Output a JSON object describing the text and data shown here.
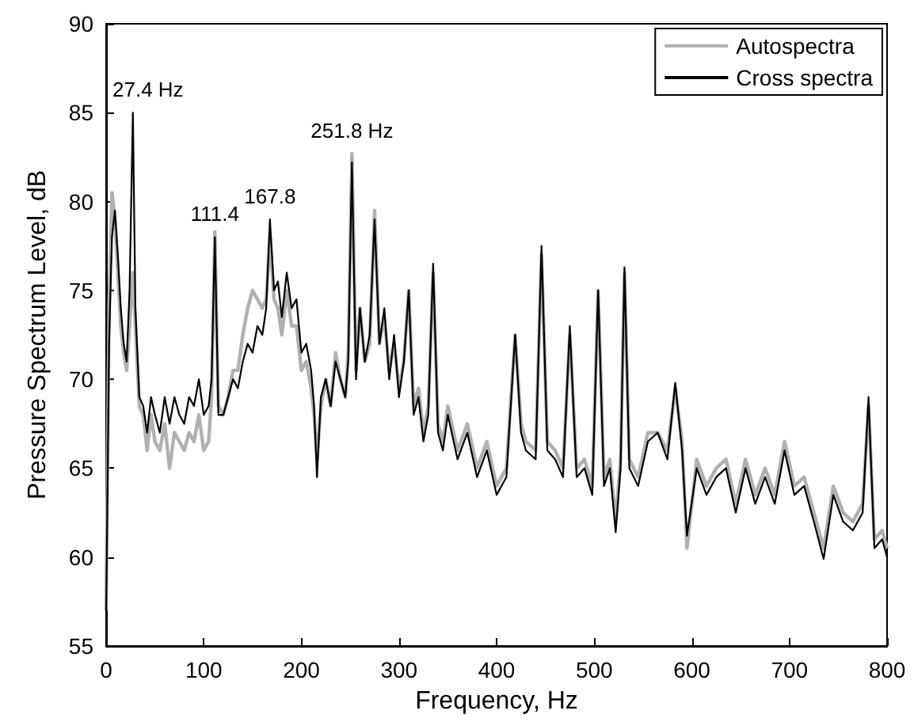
{
  "chart_data": {
    "type": "line",
    "xlabel": "Frequency, Hz",
    "ylabel": "Pressure Spectrum Level, dB",
    "xlim": [
      0,
      800
    ],
    "xticks": [
      0,
      100,
      200,
      300,
      400,
      500,
      600,
      700,
      800
    ],
    "ylim": [
      55,
      90
    ],
    "yticks": [
      55,
      60,
      65,
      70,
      75,
      80,
      85,
      90
    ],
    "grid": false,
    "legend": "top right",
    "marker": "none",
    "line_style": "solid",
    "annotations": [
      {
        "text": "27.4 Hz",
        "x": 27.4,
        "y": 85
      },
      {
        "text": "111.4",
        "x": 111.4,
        "y": 78
      },
      {
        "text": "167.8",
        "x": 167.8,
        "y": 79
      },
      {
        "text": "251.8 Hz",
        "x": 251.8,
        "y": 82.7
      }
    ],
    "x": [
      0,
      3,
      6,
      9,
      12,
      15,
      18,
      21,
      24,
      27.4,
      30,
      34,
      38,
      42,
      46,
      50,
      55,
      60,
      65,
      70,
      75,
      80,
      85,
      90,
      95,
      100,
      105,
      108,
      111.4,
      115,
      120,
      125,
      130,
      135,
      140,
      145,
      150,
      155,
      160,
      164,
      167.8,
      172,
      176,
      180,
      185,
      190,
      195,
      200,
      205,
      210,
      213,
      216,
      220,
      225,
      230,
      235,
      240,
      245,
      248,
      251.8,
      256,
      260,
      265,
      270,
      275,
      280,
      285,
      290,
      295,
      300,
      305,
      310,
      315,
      320,
      325,
      330,
      335,
      340,
      345,
      350,
      360,
      370,
      380,
      390,
      400,
      410,
      419,
      425,
      430,
      440,
      446,
      452,
      460,
      468,
      475,
      482,
      490,
      498,
      504,
      510,
      516,
      522,
      527,
      531,
      536,
      545,
      555,
      565,
      575,
      583,
      590,
      595,
      605,
      615,
      625,
      635,
      645,
      655,
      665,
      675,
      685,
      695,
      705,
      715,
      725,
      735,
      745,
      755,
      765,
      775,
      781,
      787,
      795,
      800
    ],
    "series": [
      {
        "name": "Autospectra",
        "color": "#b0b0b0",
        "values": [
          57,
          74,
          80.5,
          79,
          76,
          73,
          71.5,
          70.5,
          73,
          76,
          73,
          68.5,
          68,
          66,
          68,
          66.5,
          66,
          67.5,
          65,
          67,
          66.5,
          66,
          67,
          66.5,
          68,
          66,
          66.5,
          69,
          78.3,
          68.5,
          68,
          69,
          70.5,
          70.5,
          72.5,
          74,
          75,
          74.5,
          74,
          74.5,
          78,
          74.5,
          74,
          72.5,
          75,
          73,
          73,
          70.5,
          71,
          69.5,
          68,
          65.5,
          68.5,
          70,
          68.5,
          71.5,
          70,
          69,
          71.5,
          82.7,
          70.5,
          74,
          71,
          72,
          79.5,
          72,
          73.5,
          70.5,
          72,
          69.5,
          71,
          75,
          68.5,
          69.5,
          67,
          68.5,
          76,
          67.5,
          66.5,
          68.5,
          66,
          67.5,
          65,
          66.5,
          64,
          65,
          72.5,
          67.5,
          66.5,
          66,
          77,
          66.5,
          66,
          65,
          72.5,
          65,
          65.5,
          64,
          75,
          64.5,
          65.5,
          62,
          65.5,
          76,
          65.5,
          64.5,
          67,
          67,
          66,
          69.5,
          66.5,
          60.5,
          65.5,
          64,
          65,
          65.5,
          63,
          65.5,
          63.5,
          65,
          63.5,
          66.5,
          64,
          64.5,
          62.5,
          60.5,
          64,
          62.5,
          62,
          63,
          68.5,
          61,
          61.5,
          60.5
        ]
      },
      {
        "name": "Cross spectra",
        "color": "#000000",
        "values": [
          56.5,
          72,
          78,
          79.5,
          77,
          74,
          72,
          71,
          75,
          85,
          74,
          69,
          68.5,
          67,
          69,
          68,
          67,
          69,
          67.5,
          69,
          68,
          67.5,
          69,
          68.5,
          70,
          68,
          68.5,
          70,
          78,
          68,
          68,
          69,
          70,
          69.5,
          71,
          72,
          71.5,
          73,
          72.5,
          74,
          79,
          75,
          75.5,
          73.5,
          76,
          74,
          74.5,
          71.5,
          72,
          70.5,
          68.5,
          64.5,
          69,
          70,
          68.5,
          71,
          70,
          69,
          71,
          82.2,
          70,
          74,
          71,
          72.5,
          79,
          72,
          74,
          70,
          72.5,
          69,
          71,
          75,
          68,
          69,
          66.5,
          68,
          76.5,
          67,
          66,
          68,
          65.5,
          67,
          64.5,
          66,
          63.5,
          64.5,
          72.5,
          67,
          66,
          65.5,
          77.5,
          66,
          65.5,
          64.5,
          73,
          64.5,
          65,
          63.5,
          75,
          64,
          65,
          61.4,
          65,
          76.3,
          65,
          64,
          66.5,
          67,
          65.5,
          69.8,
          66,
          61.2,
          65,
          63.5,
          64.5,
          65,
          62.5,
          65,
          63,
          64.5,
          63,
          66,
          63.5,
          64,
          62,
          59.9,
          63.5,
          62,
          61.5,
          62.5,
          69,
          60.5,
          61,
          60
        ]
      }
    ]
  }
}
